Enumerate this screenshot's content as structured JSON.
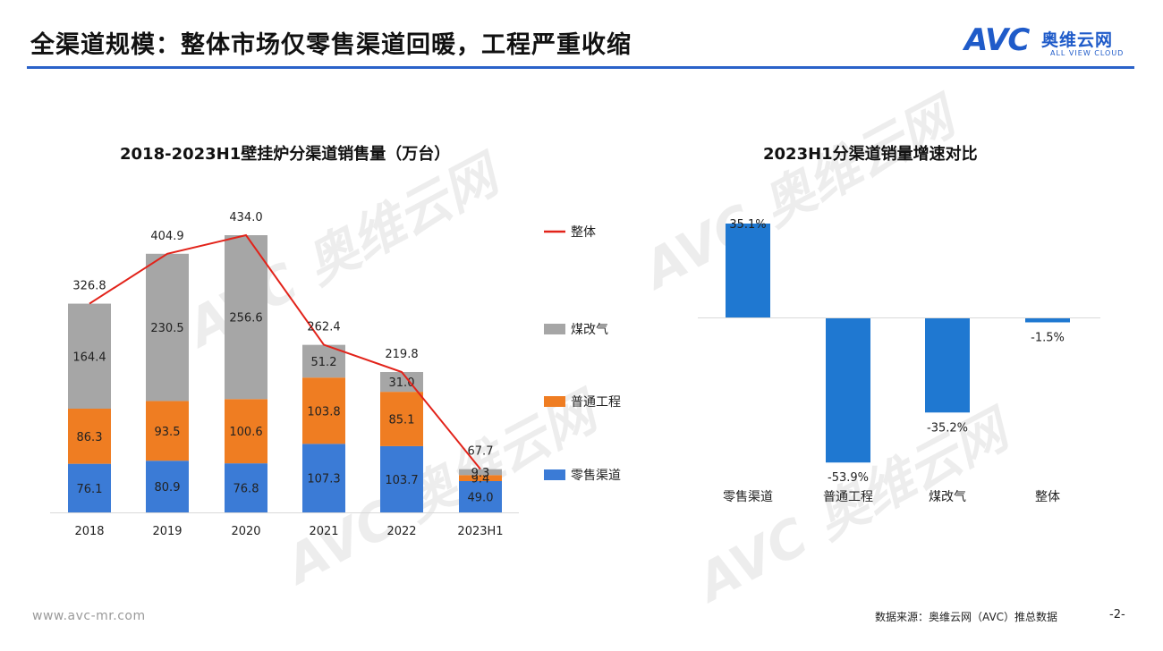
{
  "page": {
    "title": "全渠道规模：整体市场仅零售渠道回暖，工程严重收缩",
    "logo_mark": "AVC",
    "logo_cn": "奥维云网",
    "logo_en": "ALL VIEW CLOUD",
    "footer_url": "www.avc-mr.com",
    "footer_source": "数据来源：奥维云网（AVC）推总数据",
    "page_number": "-2-",
    "watermark_text": "AVC 奥维云网"
  },
  "colors": {
    "accent": "#2a62c9",
    "retail": "#3b7bd6",
    "engineering": "#ef7d22",
    "coal_to_gas": "#a6a6a6",
    "total_line": "#e2231a",
    "growth_bar": "#1f78d1"
  },
  "chart_data": [
    {
      "type": "bar",
      "stacked": true,
      "title": "2018-2023H1壁挂炉分渠道销售量（万台）",
      "categories": [
        "2018",
        "2019",
        "2020",
        "2021",
        "2022",
        "2023H1"
      ],
      "series": [
        {
          "name": "零售渠道",
          "values": [
            76.1,
            80.9,
            76.8,
            107.3,
            103.7,
            49.0
          ],
          "labels": [
            "76.1",
            "80.9",
            "76.8",
            "107.3",
            "103.7",
            "49.0"
          ]
        },
        {
          "name": "普通工程",
          "values": [
            86.3,
            93.5,
            100.6,
            103.8,
            85.1,
            9.4
          ],
          "labels": [
            "86.3",
            "93.5",
            "100.6",
            "103.8",
            "85.1",
            "9.4"
          ]
        },
        {
          "name": "煤改气",
          "values": [
            164.4,
            230.5,
            256.6,
            51.2,
            31.0,
            9.3
          ],
          "labels": [
            "164.4",
            "230.5",
            "256.6",
            "51.2",
            "31.0",
            "9.3"
          ]
        }
      ],
      "line": {
        "name": "整体",
        "values": [
          326.8,
          404.9,
          434.0,
          262.4,
          219.8,
          67.7
        ],
        "labels": [
          "326.8",
          "404.9",
          "434.0",
          "262.4",
          "219.8",
          "67.7"
        ]
      },
      "legend_order": [
        "整体",
        "煤改气",
        "普通工程",
        "零售渠道"
      ],
      "legend_position": "right",
      "grid": false
    },
    {
      "type": "bar",
      "title": "2023H1分渠道销量增速对比",
      "categories": [
        "零售渠道",
        "普通工程",
        "煤改气",
        "整体"
      ],
      "values": [
        35.1,
        -53.9,
        -35.2,
        -1.5
      ],
      "labels": [
        "35.1%",
        "-53.9%",
        "-35.2%",
        "-1.5%"
      ],
      "unit": "%",
      "grid": false
    }
  ]
}
